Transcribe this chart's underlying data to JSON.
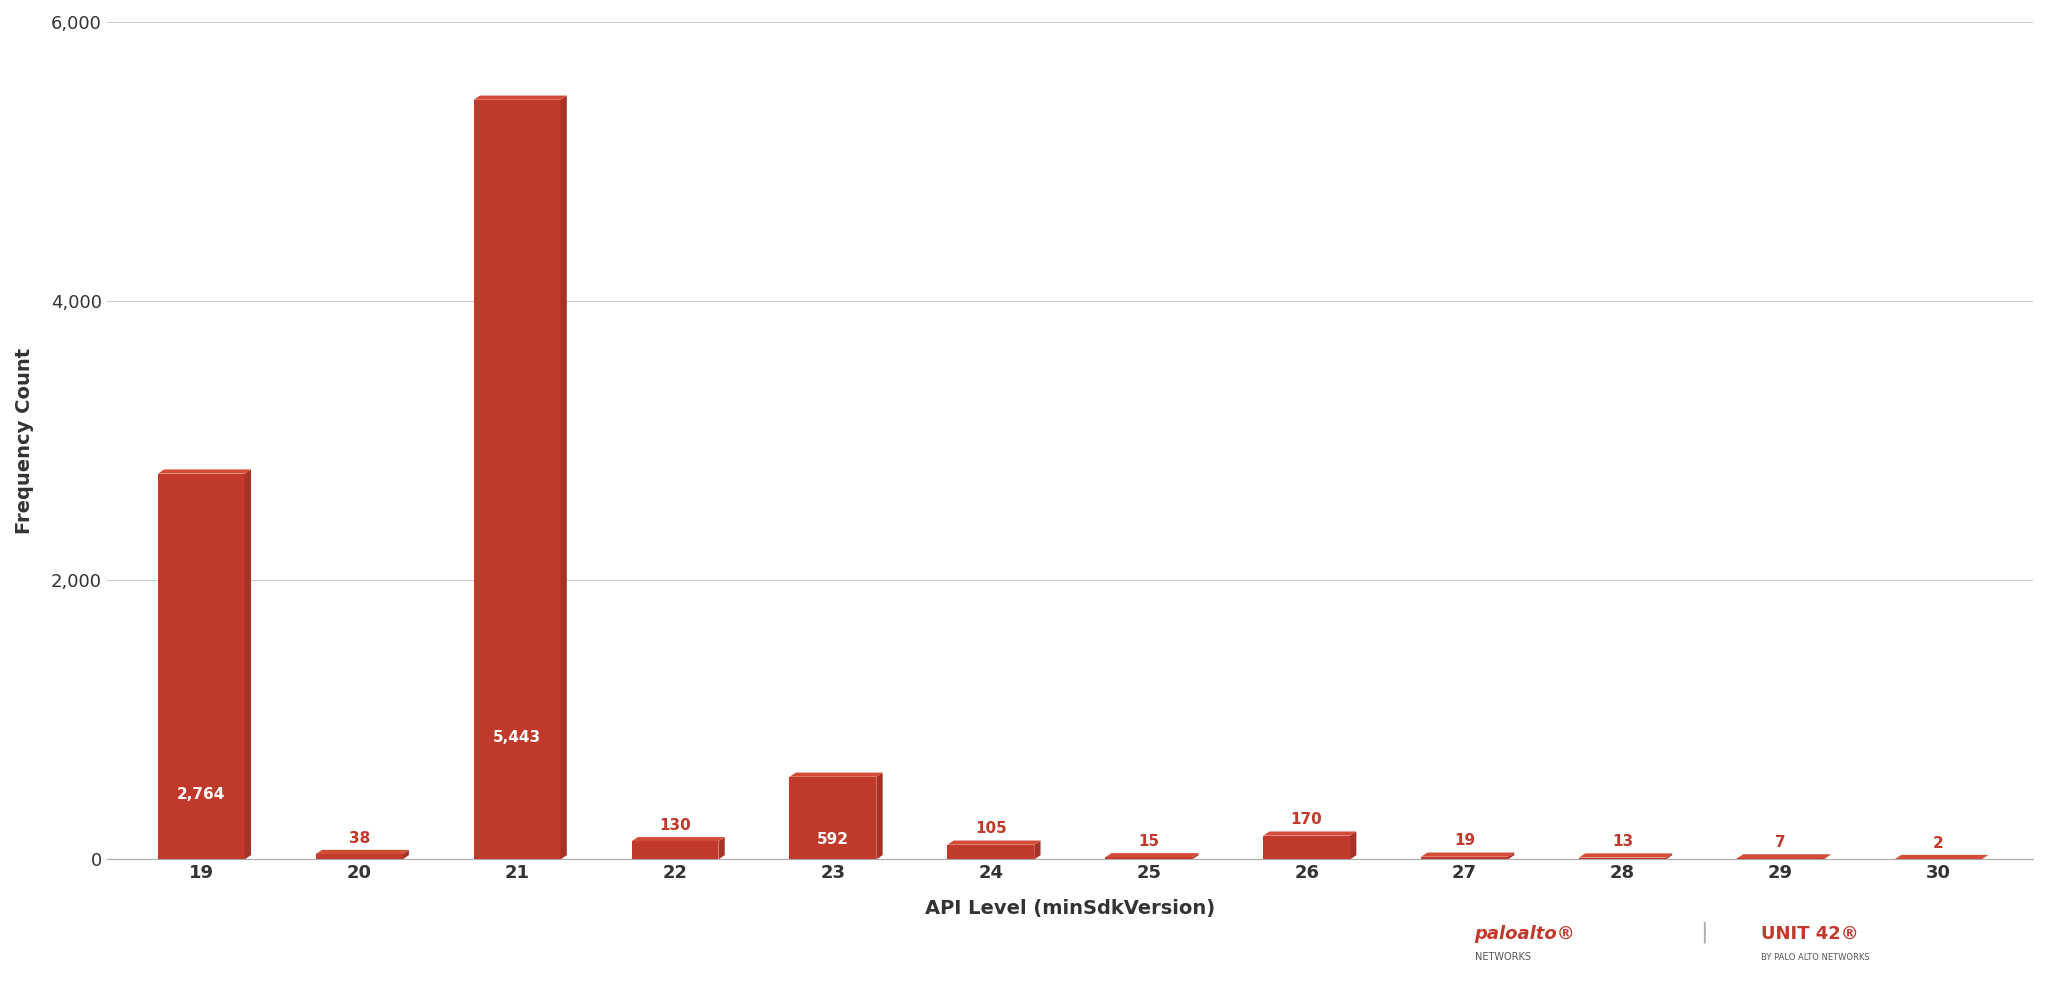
{
  "categories": [
    19,
    20,
    21,
    22,
    23,
    24,
    25,
    26,
    27,
    28,
    29,
    30
  ],
  "values": [
    2764,
    38,
    5443,
    130,
    592,
    105,
    15,
    170,
    19,
    13,
    7,
    2
  ],
  "bar_color": "#c0392b",
  "bar_color_dark": "#a93226",
  "label_color": "#ffffff",
  "title": "",
  "xlabel": "API Level (minSdkVersion)",
  "ylabel": "Frequency Count",
  "ylim": [
    0,
    6000
  ],
  "yticks": [
    0,
    2000,
    4000,
    6000
  ],
  "background_color": "#ffffff",
  "grid_color": "#cccccc",
  "axis_label_color": "#333333",
  "tick_label_color": "#333333",
  "label_fontsize": 11,
  "axis_title_fontsize": 14,
  "tick_fontsize": 13
}
